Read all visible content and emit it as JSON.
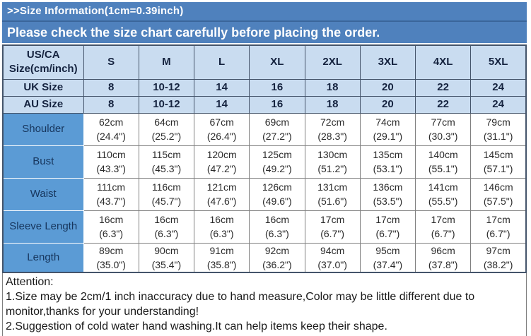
{
  "banner": {
    "title": ">>Size Information(1cm=0.39inch)",
    "subtitle": "Please check the size chart carefully before placing the order."
  },
  "colors": {
    "banner_blue": "#4f81bd",
    "banner_divider": "#3a669b",
    "header_fill": "#c9dcf0",
    "row_label_fill": "#5b9bd5",
    "header_text": "#15233f",
    "row_label_text": "#17365d"
  },
  "table": {
    "header": {
      "label_line1": "US/CA",
      "label_line2": "Size(cm/inch)",
      "sizes": [
        "S",
        "M",
        "L",
        "XL",
        "2XL",
        "3XL",
        "4XL",
        "5XL"
      ]
    },
    "size_rows": [
      {
        "label": "UK Size",
        "values": [
          "8",
          "10-12",
          "14",
          "16",
          "18",
          "20",
          "22",
          "24"
        ]
      },
      {
        "label": "AU Size",
        "values": [
          "8",
          "10-12",
          "14",
          "16",
          "18",
          "20",
          "22",
          "24"
        ]
      }
    ],
    "measure_rows": [
      {
        "label": "Shoulder",
        "values": [
          {
            "cm": "62cm",
            "inch": "(24.4\")"
          },
          {
            "cm": "64cm",
            "inch": "(25.2\")"
          },
          {
            "cm": "67cm",
            "inch": "(26.4\")"
          },
          {
            "cm": "69cm",
            "inch": "(27.2\")"
          },
          {
            "cm": "72cm",
            "inch": "(28.3\")"
          },
          {
            "cm": "74cm",
            "inch": "(29.1\")"
          },
          {
            "cm": "77cm",
            "inch": "(30.3\")"
          },
          {
            "cm": "79cm",
            "inch": "(31.1\")"
          }
        ]
      },
      {
        "label": "Bust",
        "values": [
          {
            "cm": "110cm",
            "inch": "(43.3\")"
          },
          {
            "cm": "115cm",
            "inch": "(45.3\")"
          },
          {
            "cm": "120cm",
            "inch": "(47.2\")"
          },
          {
            "cm": "125cm",
            "inch": "(49.2\")"
          },
          {
            "cm": "130cm",
            "inch": "(51.2\")"
          },
          {
            "cm": "135cm",
            "inch": "(53.1\")"
          },
          {
            "cm": "140cm",
            "inch": "(55.1\")"
          },
          {
            "cm": "145cm",
            "inch": "(57.1\")"
          }
        ]
      },
      {
        "label": "Waist",
        "values": [
          {
            "cm": "111cm",
            "inch": "(43.7\")"
          },
          {
            "cm": "116cm",
            "inch": "(45.7\")"
          },
          {
            "cm": "121cm",
            "inch": "(47.6\")"
          },
          {
            "cm": "126cm",
            "inch": "(49.6\")"
          },
          {
            "cm": "131cm",
            "inch": "(51.6\")"
          },
          {
            "cm": "136cm",
            "inch": "(53.5\")"
          },
          {
            "cm": "141cm",
            "inch": "(55.5\")"
          },
          {
            "cm": "146cm",
            "inch": "(57.5\")"
          }
        ]
      },
      {
        "label": "Sleeve Length",
        "values": [
          {
            "cm": "16cm",
            "inch": "(6.3\")"
          },
          {
            "cm": "16cm",
            "inch": "(6.3\")"
          },
          {
            "cm": "16cm",
            "inch": "(6.3\")"
          },
          {
            "cm": "16cm",
            "inch": "(6.3\")"
          },
          {
            "cm": "17cm",
            "inch": "(6.7\")"
          },
          {
            "cm": "17cm",
            "inch": "(6.7\")"
          },
          {
            "cm": "17cm",
            "inch": "(6.7\")"
          },
          {
            "cm": "17cm",
            "inch": "(6.7\")"
          }
        ]
      },
      {
        "label": "Length",
        "values": [
          {
            "cm": "89cm",
            "inch": "(35.0\")"
          },
          {
            "cm": "90cm",
            "inch": "(35.4\")"
          },
          {
            "cm": "91cm",
            "inch": "(35.8\")"
          },
          {
            "cm": "92cm",
            "inch": "(36.2\")"
          },
          {
            "cm": "94cm",
            "inch": "(37.0\")"
          },
          {
            "cm": "95cm",
            "inch": "(37.4\")"
          },
          {
            "cm": "96cm",
            "inch": "(37.8\")"
          },
          {
            "cm": "97cm",
            "inch": "(38.2\")"
          }
        ]
      }
    ]
  },
  "attention": {
    "title": "Attention:",
    "lines": [
      "1.Size may be 2cm/1 inch inaccuracy due to hand measure,Color may be little different due to monitor,thanks for your understanding!",
      "2.Suggestion of cold water hand washing.It can help items keep their shape."
    ]
  }
}
